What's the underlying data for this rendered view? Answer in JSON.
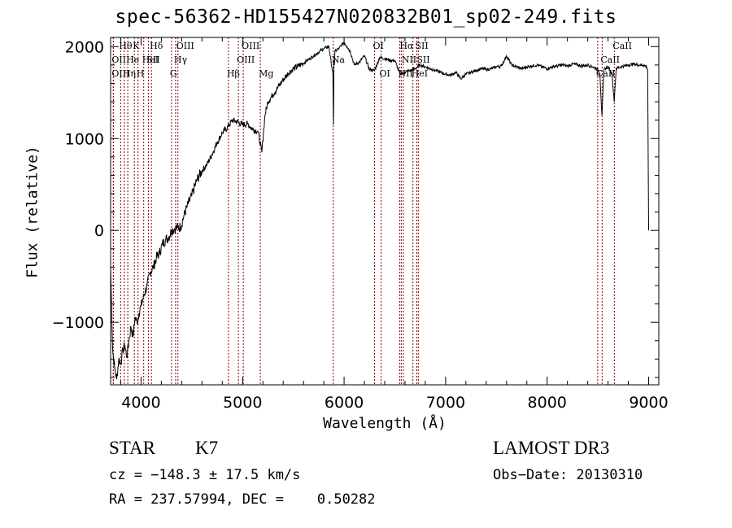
{
  "chart_data": {
    "type": "line",
    "title": "spec-56362-HD155427N020832B01_sp02-249.fits",
    "xlabel": "Wavelength (Å)",
    "ylabel": "Flux (relative)",
    "xlim": [
      3700,
      9100
    ],
    "ylim": [
      -1680,
      2100
    ],
    "x_ticks": [
      4000,
      5000,
      6000,
      7000,
      8000,
      9000
    ],
    "y_ticks": [
      -1000,
      0,
      1000,
      2000
    ],
    "series": [
      {
        "x": [
          3700,
          3720,
          3740,
          3760,
          3780,
          3800,
          3820,
          3840,
          3860,
          3880,
          3900,
          3920,
          3940,
          3960,
          3980,
          4000,
          4030,
          4060,
          4090,
          4120,
          4150,
          4180,
          4210,
          4240,
          4270,
          4300,
          4330,
          4360,
          4390,
          4420,
          4450,
          4500,
          4550,
          4600,
          4650,
          4700,
          4750,
          4800,
          4850,
          4900,
          4950,
          5000,
          5050,
          5100,
          5150,
          5190,
          5220,
          5250,
          5300,
          5350,
          5400,
          5450,
          5500,
          5550,
          5600,
          5650,
          5700,
          5750,
          5800,
          5850,
          5890,
          5895,
          5900,
          5905,
          5910,
          5950,
          6000,
          6030,
          6060,
          6100,
          6150,
          6200,
          6250,
          6300,
          6350,
          6400,
          6450,
          6500,
          6550,
          6600,
          6650,
          6700,
          6750,
          6800,
          6850,
          6900,
          6950,
          7000,
          7050,
          7100,
          7150,
          7200,
          7250,
          7300,
          7350,
          7400,
          7450,
          7500,
          7550,
          7600,
          7650,
          7700,
          7750,
          7800,
          7850,
          7900,
          7950,
          8000,
          8050,
          8100,
          8150,
          8200,
          8250,
          8300,
          8350,
          8400,
          8450,
          8500,
          8520,
          8540,
          8560,
          8600,
          8640,
          8660,
          8680,
          8720,
          8760,
          8800,
          8850,
          8900,
          8950,
          8980,
          8990,
          9000
        ],
        "y": [
          -400,
          -1300,
          -1500,
          -1620,
          -1400,
          -1450,
          -1300,
          -1250,
          -1380,
          -1200,
          -1050,
          -1150,
          -950,
          -1000,
          -900,
          -820,
          -700,
          -600,
          -450,
          -400,
          -300,
          -250,
          -150,
          -100,
          -80,
          0,
          20,
          30,
          40,
          150,
          250,
          380,
          550,
          650,
          720,
          830,
          960,
          1060,
          1120,
          1200,
          1180,
          1150,
          1160,
          1100,
          1080,
          850,
          1250,
          1400,
          1480,
          1560,
          1640,
          1710,
          1760,
          1790,
          1820,
          1860,
          1900,
          1940,
          1980,
          2000,
          1700,
          1150,
          1850,
          1800,
          1950,
          1980,
          2050,
          2000,
          1950,
          1800,
          1830,
          1900,
          1750,
          1740,
          1880,
          1870,
          1850,
          1850,
          1700,
          1720,
          1740,
          1760,
          1800,
          1780,
          1760,
          1740,
          1720,
          1700,
          1690,
          1720,
          1650,
          1700,
          1720,
          1740,
          1760,
          1750,
          1760,
          1780,
          1790,
          1900,
          1800,
          1780,
          1760,
          1780,
          1790,
          1800,
          1780,
          1760,
          1780,
          1790,
          1800,
          1790,
          1810,
          1800,
          1790,
          1800,
          1780,
          1750,
          1700,
          1250,
          1750,
          1780,
          1700,
          1400,
          1760,
          1780,
          1790,
          1800,
          1810,
          1800,
          1800,
          1780,
          1750,
          0
        ]
      }
    ],
    "lines": [
      {
        "wl": 3799,
        "label": "Hθ",
        "row": 0
      },
      {
        "wl": 3727,
        "label": "OII",
        "row": 1
      },
      {
        "wl": 3727,
        "label": "OIII",
        "row": 2
      },
      {
        "wl": 3835,
        "label": "Hη",
        "row": 2
      },
      {
        "wl": 3869,
        "label": "He",
        "row": 1
      },
      {
        "wl": 3934,
        "label": "K",
        "row": 0
      },
      {
        "wl": 3970,
        "label": "H",
        "row": 2
      },
      {
        "wl": 4026,
        "label": "HeI",
        "row": 1
      },
      {
        "wl": 4072,
        "label": "SII",
        "row": 1
      },
      {
        "wl": 4102,
        "label": "Hδ",
        "row": 0
      },
      {
        "wl": 4300,
        "label": "G",
        "row": 2
      },
      {
        "wl": 4340,
        "label": "Hγ",
        "row": 1
      },
      {
        "wl": 4363,
        "label": "OIII",
        "row": 0
      },
      {
        "wl": 4861,
        "label": "Hβ",
        "row": 2
      },
      {
        "wl": 4959,
        "label": "OIII",
        "row": 1
      },
      {
        "wl": 5007,
        "label": "OIII",
        "row": 0
      },
      {
        "wl": 5175,
        "label": "Mg",
        "row": 2
      },
      {
        "wl": 5893,
        "label": "Na",
        "row": 1
      },
      {
        "wl": 6300,
        "label": "OI",
        "row": 0
      },
      {
        "wl": 6364,
        "label": "OI",
        "row": 2
      },
      {
        "wl": 6548,
        "label": "NII",
        "row": 2
      },
      {
        "wl": 6563,
        "label": "Hα",
        "row": 0
      },
      {
        "wl": 6583,
        "label": "NII",
        "row": 1
      },
      {
        "wl": 6678,
        "label": "HeI",
        "row": 2
      },
      {
        "wl": 6716,
        "label": "SII",
        "row": 0
      },
      {
        "wl": 6731,
        "label": "SII",
        "row": 1
      },
      {
        "wl": 8498,
        "label": "CaII",
        "row": 2
      },
      {
        "wl": 8542,
        "label": "CaII",
        "row": 1
      },
      {
        "wl": 8662,
        "label": "CaII",
        "row": 0
      }
    ],
    "line_color": "#000000",
    "marker_color": "#8b0000"
  },
  "info": {
    "class": "STAR",
    "subclass": "K7",
    "survey": "LAMOST DR3",
    "cz": "cz = −148.3 ± 17.5 km/s",
    "obs_date": "Obs−Date: 20130310",
    "coords": "RA = 237.57994, DEC =    0.50282"
  }
}
